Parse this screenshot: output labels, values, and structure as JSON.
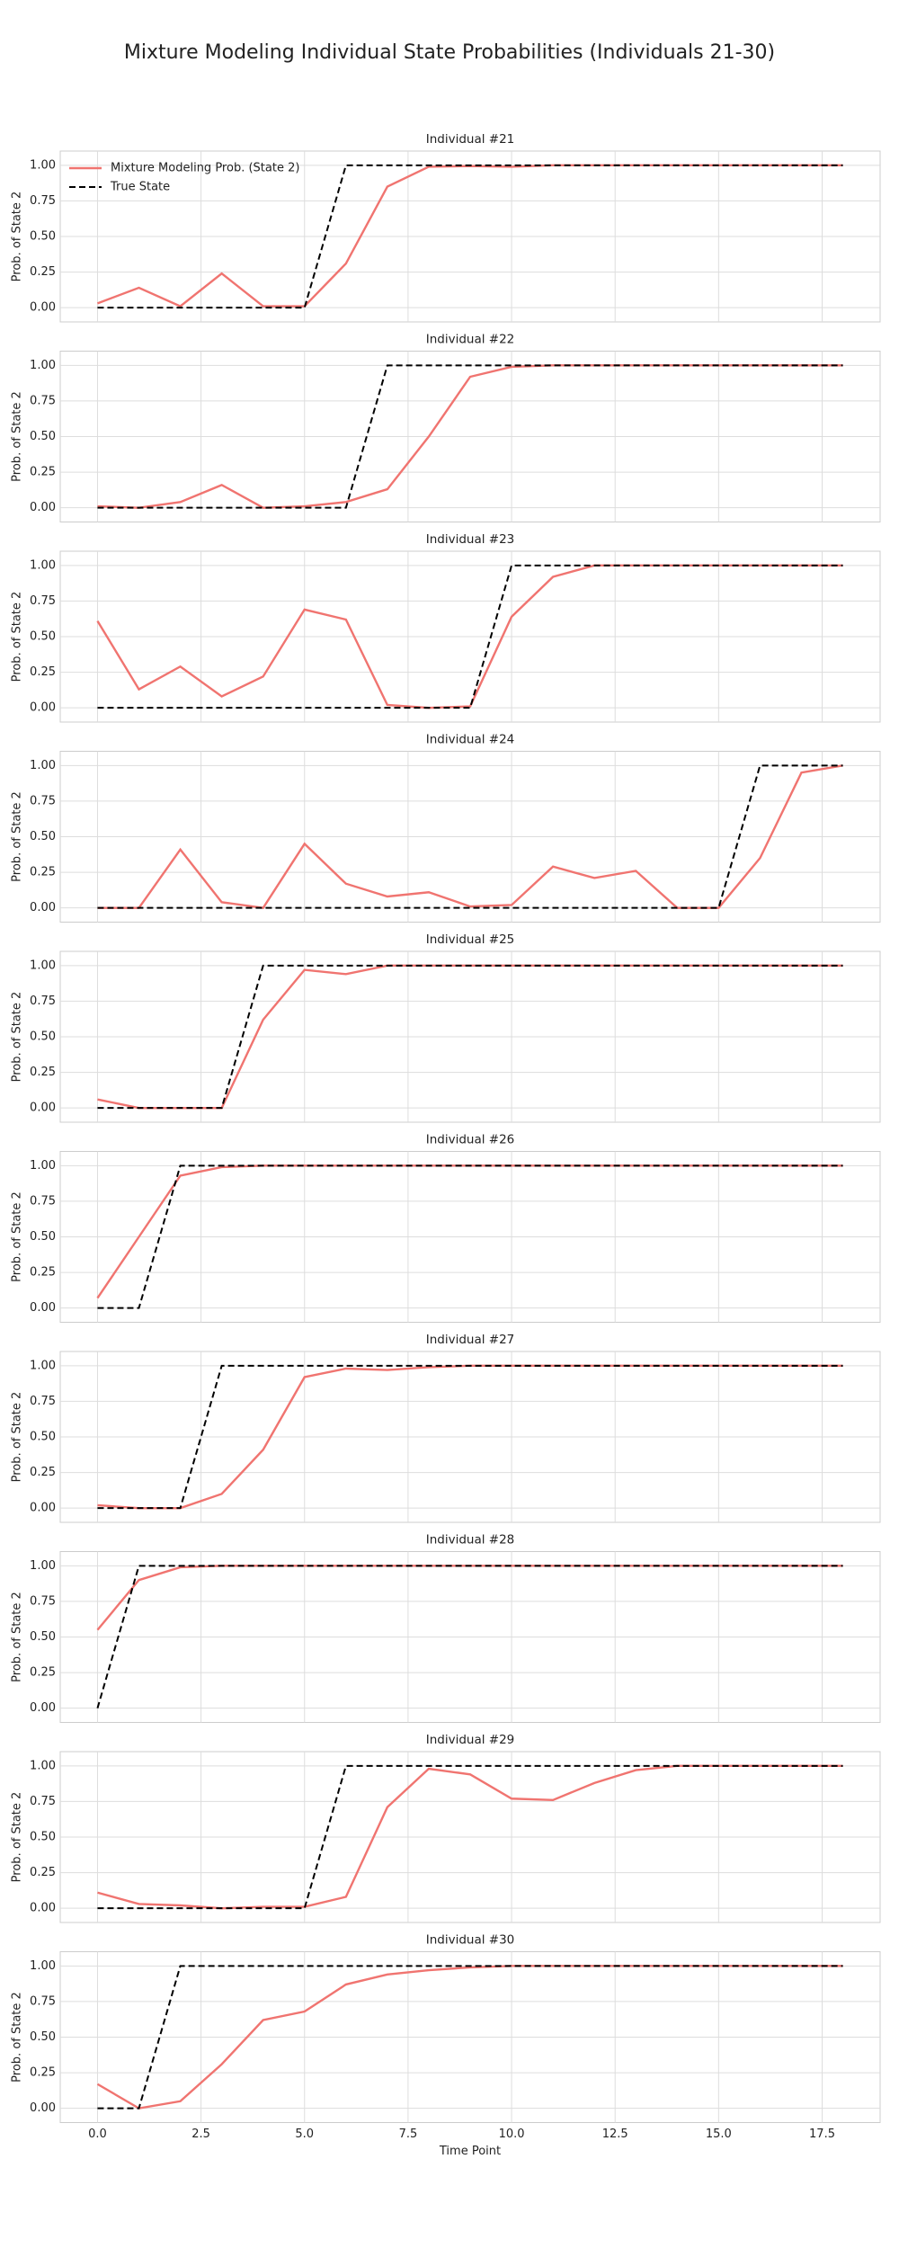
{
  "title": "Mixture Modeling Individual State Probabilities (Individuals 21-30)",
  "chart_data": [
    {
      "type": "line",
      "title": "Individual #21",
      "ylabel": "Prob. of State 2",
      "legend": "upper left",
      "grid": true,
      "x": [
        0,
        1,
        2,
        3,
        4,
        5,
        6,
        7,
        8,
        9,
        10,
        11,
        12,
        13,
        14,
        15,
        16,
        17,
        18
      ],
      "series": [
        {
          "name": "Mixture Modeling Prob. (State 2)",
          "color": "#f07470",
          "style": "solid",
          "values": [
            0.03,
            0.14,
            0.01,
            0.24,
            0.01,
            0.01,
            0.31,
            0.85,
            0.99,
            0.995,
            0.99,
            1,
            1,
            1,
            1,
            1,
            1,
            1,
            1
          ]
        },
        {
          "name": "True State",
          "color": "#000000",
          "style": "dashed",
          "values": [
            0,
            0,
            0,
            0,
            0,
            0,
            1,
            1,
            1,
            1,
            1,
            1,
            1,
            1,
            1,
            1,
            1,
            1,
            1
          ]
        }
      ],
      "xlim": [
        -0.9,
        18.9
      ],
      "xticks": [
        0,
        2.5,
        5,
        7.5,
        10,
        12.5,
        15,
        17.5
      ],
      "ylim": [
        -0.1,
        1.1
      ],
      "yticks": [
        {
          "value": 0,
          "label": "0.00"
        },
        {
          "value": 0.25,
          "label": "0.25"
        },
        {
          "value": 0.5,
          "label": "0.50"
        },
        {
          "value": 0.75,
          "label": "0.75"
        },
        {
          "value": 1,
          "label": "1.00"
        }
      ]
    },
    {
      "type": "line",
      "title": "Individual #22",
      "ylabel": "Prob. of State 2",
      "grid": true,
      "x": [
        0,
        1,
        2,
        3,
        4,
        5,
        6,
        7,
        8,
        9,
        10,
        11,
        12,
        13,
        14,
        15,
        16,
        17,
        18
      ],
      "series": [
        {
          "color": "#f07470",
          "style": "solid",
          "values": [
            0.01,
            0,
            0.04,
            0.16,
            0,
            0.01,
            0.04,
            0.13,
            0.5,
            0.92,
            0.99,
            1,
            1,
            1,
            1,
            1,
            1,
            1,
            1
          ]
        },
        {
          "color": "#000000",
          "style": "dashed",
          "values": [
            0,
            0,
            0,
            0,
            0,
            0,
            0,
            1,
            1,
            1,
            1,
            1,
            1,
            1,
            1,
            1,
            1,
            1,
            1
          ]
        }
      ],
      "xlim": [
        -0.9,
        18.9
      ],
      "xticks": [
        0,
        2.5,
        5,
        7.5,
        10,
        12.5,
        15,
        17.5
      ],
      "ylim": [
        -0.1,
        1.1
      ],
      "yticks": [
        {
          "value": 0,
          "label": "0.00"
        },
        {
          "value": 0.25,
          "label": "0.25"
        },
        {
          "value": 0.5,
          "label": "0.50"
        },
        {
          "value": 0.75,
          "label": "0.75"
        },
        {
          "value": 1,
          "label": "1.00"
        }
      ]
    },
    {
      "type": "line",
      "title": "Individual #23",
      "ylabel": "Prob. of State 2",
      "grid": true,
      "x": [
        0,
        1,
        2,
        3,
        4,
        5,
        6,
        7,
        8,
        9,
        10,
        11,
        12,
        13,
        14,
        15,
        16,
        17,
        18
      ],
      "series": [
        {
          "color": "#f07470",
          "style": "solid",
          "values": [
            0.61,
            0.13,
            0.29,
            0.08,
            0.22,
            0.69,
            0.62,
            0.02,
            0,
            0.01,
            0.64,
            0.92,
            1,
            1,
            1,
            1,
            1,
            1,
            1
          ]
        },
        {
          "color": "#000000",
          "style": "dashed",
          "values": [
            0,
            0,
            0,
            0,
            0,
            0,
            0,
            0,
            0,
            0,
            1,
            1,
            1,
            1,
            1,
            1,
            1,
            1,
            1
          ]
        }
      ],
      "xlim": [
        -0.9,
        18.9
      ],
      "xticks": [
        0,
        2.5,
        5,
        7.5,
        10,
        12.5,
        15,
        17.5
      ],
      "ylim": [
        -0.1,
        1.1
      ],
      "yticks": [
        {
          "value": 0,
          "label": "0.00"
        },
        {
          "value": 0.25,
          "label": "0.25"
        },
        {
          "value": 0.5,
          "label": "0.50"
        },
        {
          "value": 0.75,
          "label": "0.75"
        },
        {
          "value": 1,
          "label": "1.00"
        }
      ]
    },
    {
      "type": "line",
      "title": "Individual #24",
      "ylabel": "Prob. of State 2",
      "grid": true,
      "x": [
        0,
        1,
        2,
        3,
        4,
        5,
        6,
        7,
        8,
        9,
        10,
        11,
        12,
        13,
        14,
        15,
        16,
        17,
        18
      ],
      "series": [
        {
          "color": "#f07470",
          "style": "solid",
          "values": [
            0,
            0,
            0.41,
            0.04,
            0,
            0.45,
            0.17,
            0.08,
            0.11,
            0.01,
            0.02,
            0.29,
            0.21,
            0.26,
            0,
            0,
            0.35,
            0.95,
            1
          ]
        },
        {
          "color": "#000000",
          "style": "dashed",
          "values": [
            0,
            0,
            0,
            0,
            0,
            0,
            0,
            0,
            0,
            0,
            0,
            0,
            0,
            0,
            0,
            0,
            1,
            1,
            1
          ]
        }
      ],
      "xlim": [
        -0.9,
        18.9
      ],
      "xticks": [
        0,
        2.5,
        5,
        7.5,
        10,
        12.5,
        15,
        17.5
      ],
      "ylim": [
        -0.1,
        1.1
      ],
      "yticks": [
        {
          "value": 0,
          "label": "0.00"
        },
        {
          "value": 0.25,
          "label": "0.25"
        },
        {
          "value": 0.5,
          "label": "0.50"
        },
        {
          "value": 0.75,
          "label": "0.75"
        },
        {
          "value": 1,
          "label": "1.00"
        }
      ]
    },
    {
      "type": "line",
      "title": "Individual #25",
      "ylabel": "Prob. of State 2",
      "grid": true,
      "x": [
        0,
        1,
        2,
        3,
        4,
        5,
        6,
        7,
        8,
        9,
        10,
        11,
        12,
        13,
        14,
        15,
        16,
        17,
        18
      ],
      "series": [
        {
          "color": "#f07470",
          "style": "solid",
          "values": [
            0.06,
            0,
            0,
            0,
            0.62,
            0.97,
            0.94,
            1,
            1,
            1,
            1,
            1,
            1,
            1,
            1,
            1,
            1,
            1,
            1
          ]
        },
        {
          "color": "#000000",
          "style": "dashed",
          "values": [
            0,
            0,
            0,
            0,
            1,
            1,
            1,
            1,
            1,
            1,
            1,
            1,
            1,
            1,
            1,
            1,
            1,
            1,
            1
          ]
        }
      ],
      "xlim": [
        -0.9,
        18.9
      ],
      "xticks": [
        0,
        2.5,
        5,
        7.5,
        10,
        12.5,
        15,
        17.5
      ],
      "ylim": [
        -0.1,
        1.1
      ],
      "yticks": [
        {
          "value": 0,
          "label": "0.00"
        },
        {
          "value": 0.25,
          "label": "0.25"
        },
        {
          "value": 0.5,
          "label": "0.50"
        },
        {
          "value": 0.75,
          "label": "0.75"
        },
        {
          "value": 1,
          "label": "1.00"
        }
      ]
    },
    {
      "type": "line",
      "title": "Individual #26",
      "ylabel": "Prob. of State 2",
      "grid": true,
      "x": [
        0,
        1,
        2,
        3,
        4,
        5,
        6,
        7,
        8,
        9,
        10,
        11,
        12,
        13,
        14,
        15,
        16,
        17,
        18
      ],
      "series": [
        {
          "color": "#f07470",
          "style": "solid",
          "values": [
            0.07,
            0.5,
            0.93,
            0.99,
            1,
            1,
            1,
            1,
            1,
            1,
            1,
            1,
            1,
            1,
            1,
            1,
            1,
            1,
            1
          ]
        },
        {
          "color": "#000000",
          "style": "dashed",
          "values": [
            0,
            0,
            1,
            1,
            1,
            1,
            1,
            1,
            1,
            1,
            1,
            1,
            1,
            1,
            1,
            1,
            1,
            1,
            1
          ]
        }
      ],
      "xlim": [
        -0.9,
        18.9
      ],
      "xticks": [
        0,
        2.5,
        5,
        7.5,
        10,
        12.5,
        15,
        17.5
      ],
      "ylim": [
        -0.1,
        1.1
      ],
      "yticks": [
        {
          "value": 0,
          "label": "0.00"
        },
        {
          "value": 0.25,
          "label": "0.25"
        },
        {
          "value": 0.5,
          "label": "0.50"
        },
        {
          "value": 0.75,
          "label": "0.75"
        },
        {
          "value": 1,
          "label": "1.00"
        }
      ]
    },
    {
      "type": "line",
      "title": "Individual #27",
      "ylabel": "Prob. of State 2",
      "grid": true,
      "x": [
        0,
        1,
        2,
        3,
        4,
        5,
        6,
        7,
        8,
        9,
        10,
        11,
        12,
        13,
        14,
        15,
        16,
        17,
        18
      ],
      "series": [
        {
          "color": "#f07470",
          "style": "solid",
          "values": [
            0.02,
            0,
            0,
            0.1,
            0.41,
            0.92,
            0.98,
            0.97,
            0.99,
            1,
            1,
            1,
            1,
            1,
            1,
            1,
            1,
            1,
            1
          ]
        },
        {
          "color": "#000000",
          "style": "dashed",
          "values": [
            0,
            0,
            0,
            1,
            1,
            1,
            1,
            1,
            1,
            1,
            1,
            1,
            1,
            1,
            1,
            1,
            1,
            1,
            1
          ]
        }
      ],
      "xlim": [
        -0.9,
        18.9
      ],
      "xticks": [
        0,
        2.5,
        5,
        7.5,
        10,
        12.5,
        15,
        17.5
      ],
      "ylim": [
        -0.1,
        1.1
      ],
      "yticks": [
        {
          "value": 0,
          "label": "0.00"
        },
        {
          "value": 0.25,
          "label": "0.25"
        },
        {
          "value": 0.5,
          "label": "0.50"
        },
        {
          "value": 0.75,
          "label": "0.75"
        },
        {
          "value": 1,
          "label": "1.00"
        }
      ]
    },
    {
      "type": "line",
      "title": "Individual #28",
      "ylabel": "Prob. of State 2",
      "grid": true,
      "x": [
        0,
        1,
        2,
        3,
        4,
        5,
        6,
        7,
        8,
        9,
        10,
        11,
        12,
        13,
        14,
        15,
        16,
        17,
        18
      ],
      "series": [
        {
          "color": "#f07470",
          "style": "solid",
          "values": [
            0.55,
            0.9,
            0.99,
            1,
            1,
            1,
            1,
            1,
            1,
            1,
            1,
            1,
            1,
            1,
            1,
            1,
            1,
            1,
            1
          ]
        },
        {
          "color": "#000000",
          "style": "dashed",
          "values": [
            0,
            1,
            1,
            1,
            1,
            1,
            1,
            1,
            1,
            1,
            1,
            1,
            1,
            1,
            1,
            1,
            1,
            1,
            1
          ]
        }
      ],
      "xlim": [
        -0.9,
        18.9
      ],
      "xticks": [
        0,
        2.5,
        5,
        7.5,
        10,
        12.5,
        15,
        17.5
      ],
      "ylim": [
        -0.1,
        1.1
      ],
      "yticks": [
        {
          "value": 0,
          "label": "0.00"
        },
        {
          "value": 0.25,
          "label": "0.25"
        },
        {
          "value": 0.5,
          "label": "0.50"
        },
        {
          "value": 0.75,
          "label": "0.75"
        },
        {
          "value": 1,
          "label": "1.00"
        }
      ]
    },
    {
      "type": "line",
      "title": "Individual #29",
      "ylabel": "Prob. of State 2",
      "grid": true,
      "x": [
        0,
        1,
        2,
        3,
        4,
        5,
        6,
        7,
        8,
        9,
        10,
        11,
        12,
        13,
        14,
        15,
        16,
        17,
        18
      ],
      "series": [
        {
          "color": "#f07470",
          "style": "solid",
          "values": [
            0.11,
            0.03,
            0.02,
            0,
            0.01,
            0.01,
            0.08,
            0.71,
            0.98,
            0.94,
            0.77,
            0.76,
            0.88,
            0.97,
            1,
            1,
            1,
            1,
            1
          ]
        },
        {
          "color": "#000000",
          "style": "dashed",
          "values": [
            0,
            0,
            0,
            0,
            0,
            0,
            1,
            1,
            1,
            1,
            1,
            1,
            1,
            1,
            1,
            1,
            1,
            1,
            1
          ]
        }
      ],
      "xlim": [
        -0.9,
        18.9
      ],
      "xticks": [
        0,
        2.5,
        5,
        7.5,
        10,
        12.5,
        15,
        17.5
      ],
      "ylim": [
        -0.1,
        1.1
      ],
      "yticks": [
        {
          "value": 0,
          "label": "0.00"
        },
        {
          "value": 0.25,
          "label": "0.25"
        },
        {
          "value": 0.5,
          "label": "0.50"
        },
        {
          "value": 0.75,
          "label": "0.75"
        },
        {
          "value": 1,
          "label": "1.00"
        }
      ]
    },
    {
      "type": "line",
      "title": "Individual #30",
      "ylabel": "Prob. of State 2",
      "xlabel": "Time Point",
      "grid": true,
      "x": [
        0,
        1,
        2,
        3,
        4,
        5,
        6,
        7,
        8,
        9,
        10,
        11,
        12,
        13,
        14,
        15,
        16,
        17,
        18
      ],
      "series": [
        {
          "color": "#f07470",
          "style": "solid",
          "values": [
            0.17,
            0,
            0.05,
            0.31,
            0.62,
            0.68,
            0.87,
            0.94,
            0.97,
            0.99,
            1,
            1,
            1,
            1,
            1,
            1,
            1,
            1,
            1
          ]
        },
        {
          "color": "#000000",
          "style": "dashed",
          "values": [
            0,
            0,
            1,
            1,
            1,
            1,
            1,
            1,
            1,
            1,
            1,
            1,
            1,
            1,
            1,
            1,
            1,
            1,
            1
          ]
        }
      ],
      "xlim": [
        -0.9,
        18.9
      ],
      "xticks": [
        {
          "value": 0,
          "label": "0.0"
        },
        {
          "value": 2.5,
          "label": "2.5"
        },
        {
          "value": 5,
          "label": "5.0"
        },
        {
          "value": 7.5,
          "label": "7.5"
        },
        {
          "value": 10,
          "label": "10.0"
        },
        {
          "value": 12.5,
          "label": "12.5"
        },
        {
          "value": 15,
          "label": "15.0"
        },
        {
          "value": 17.5,
          "label": "17.5"
        }
      ],
      "ylim": [
        -0.1,
        1.1
      ],
      "yticks": [
        {
          "value": 0,
          "label": "0.00"
        },
        {
          "value": 0.25,
          "label": "0.25"
        },
        {
          "value": 0.5,
          "label": "0.50"
        },
        {
          "value": 0.75,
          "label": "0.75"
        },
        {
          "value": 1,
          "label": "1.00"
        }
      ]
    }
  ]
}
